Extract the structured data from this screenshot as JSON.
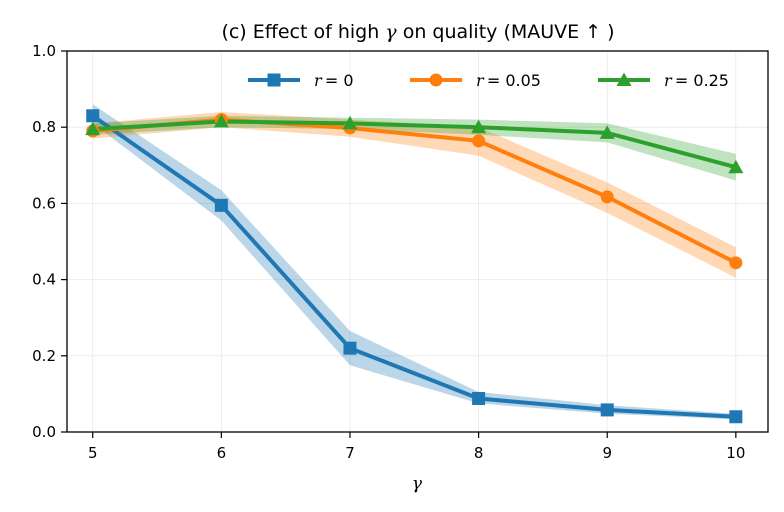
{
  "chart_data": {
    "type": "line",
    "title": "(c) Effect of high γ on quality (MAUVE ↑)",
    "title_parts": {
      "prefix": "(c) Effect of high ",
      "symbol": "γ",
      "suffix": " on quality (MAUVE  ↑ )"
    },
    "xlabel": "γ",
    "ylabel": "",
    "x": [
      5,
      6,
      7,
      8,
      9,
      10
    ],
    "xlim": [
      4.8,
      10.25
    ],
    "ylim": [
      0.0,
      1.0
    ],
    "xticks": [
      "5",
      "6",
      "7",
      "8",
      "9",
      "10"
    ],
    "yticks": [
      "0.0",
      "0.2",
      "0.4",
      "0.6",
      "0.8",
      "1.0"
    ],
    "grid": true,
    "legend_position": "top-right",
    "series": [
      {
        "name": "r = 0",
        "legend_symbol": "r",
        "legend_value": "= 0",
        "color": "#1f77b4",
        "marker": "square",
        "values": [
          0.83,
          0.595,
          0.22,
          0.088,
          0.058,
          0.04
        ],
        "lower": [
          0.81,
          0.555,
          0.175,
          0.075,
          0.048,
          0.033
        ],
        "upper": [
          0.86,
          0.635,
          0.265,
          0.105,
          0.07,
          0.048
        ]
      },
      {
        "name": "r = 0.05",
        "legend_symbol": "r",
        "legend_value": "= 0.05",
        "color": "#ff7f0e",
        "marker": "circle",
        "values": [
          0.79,
          0.82,
          0.798,
          0.764,
          0.617,
          0.444
        ],
        "lower": [
          0.77,
          0.8,
          0.775,
          0.725,
          0.575,
          0.405
        ],
        "upper": [
          0.81,
          0.84,
          0.82,
          0.8,
          0.655,
          0.485
        ]
      },
      {
        "name": "r = 0.25",
        "legend_symbol": "r",
        "legend_value": "= 0.25",
        "color": "#2ca02c",
        "marker": "triangle",
        "values": [
          0.795,
          0.815,
          0.81,
          0.8,
          0.785,
          0.695
        ],
        "lower": [
          0.78,
          0.8,
          0.795,
          0.78,
          0.76,
          0.66
        ],
        "upper": [
          0.81,
          0.83,
          0.825,
          0.82,
          0.81,
          0.73
        ]
      }
    ]
  }
}
